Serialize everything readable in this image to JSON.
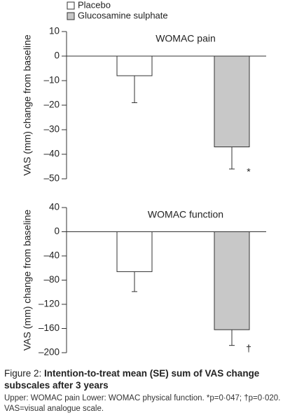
{
  "chart_data": [
    {
      "type": "bar",
      "title": "WOMAC pain",
      "ylabel": "VAS (mm) change from baseline",
      "ylim": [
        10,
        -50
      ],
      "yticks": [
        10,
        0,
        {
          "value": -10,
          "label": "–10"
        },
        {
          "value": -20,
          "label": "–20"
        },
        {
          "value": -30,
          "label": "–30"
        },
        {
          "value": -40,
          "label": "–40"
        },
        {
          "value": -50,
          "label": "–50"
        }
      ],
      "series": [
        {
          "name": "Placebo",
          "color": "#ffffff",
          "values": [
            -8
          ],
          "errors": [
            11
          ]
        },
        {
          "name": "Glucosamine sulphate",
          "color": "#c8c8c8",
          "values": [
            -37
          ],
          "errors": [
            9
          ],
          "annotation": "*"
        }
      ]
    },
    {
      "type": "bar",
      "title": "WOMAC function",
      "ylabel": "VAS (mm) change from baseline",
      "ylim": [
        40,
        -200
      ],
      "yticks": [
        40,
        0,
        {
          "value": -40,
          "label": "–40"
        },
        {
          "value": -80,
          "label": "–80"
        },
        {
          "value": -120,
          "label": "–120"
        },
        {
          "value": -160,
          "label": "–160"
        },
        {
          "value": -200,
          "label": "–200"
        }
      ],
      "series": [
        {
          "color": "#ffffff",
          "values": [
            -66
          ],
          "errors": [
            33
          ]
        },
        {
          "color": "#c8c8c8",
          "values": [
            -162
          ],
          "errors": [
            26
          ],
          "annotation": "†"
        }
      ]
    }
  ],
  "caption": {
    "label": "Figure 2:",
    "title": "Intention-to-treat mean (SE) sum of VAS change subscales after 3 years",
    "note": "Upper: WOMAC pain Lower: WOMAC physical function. *p=0·047; †p=0·020. VAS=visual analogue scale."
  }
}
